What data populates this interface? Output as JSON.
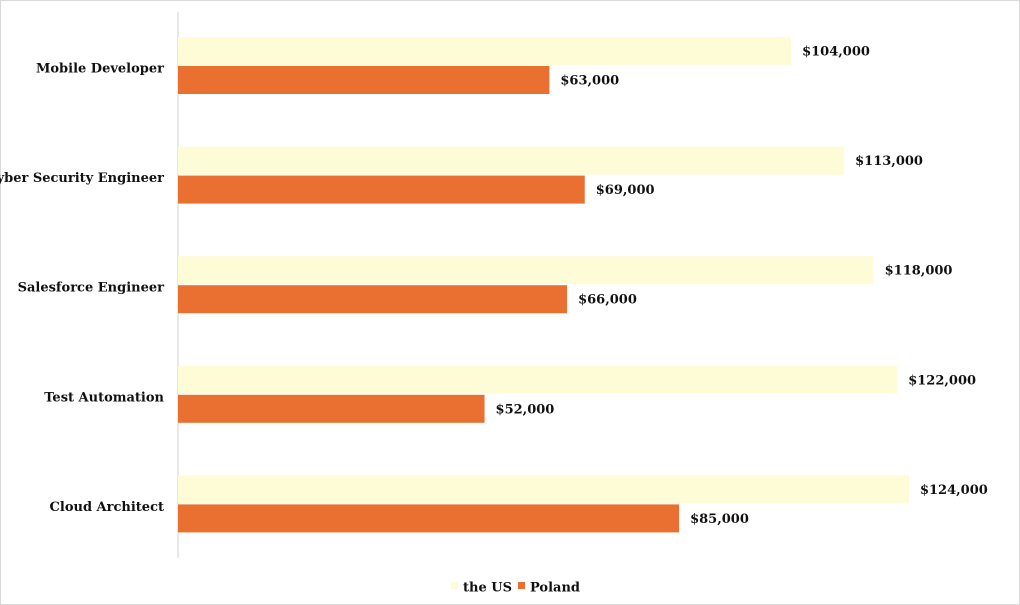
{
  "chart_data": {
    "type": "bar",
    "orientation": "horizontal",
    "categories": [
      "Mobile Developer",
      "Cyber Security Engineer",
      "Salesforce Engineer",
      "Test Automation",
      "Cloud Architect"
    ],
    "series": [
      {
        "name": "the US",
        "color": "#fefcd7",
        "values": [
          104000,
          113000,
          118000,
          122000,
          124000
        ],
        "labels": [
          "$104,000",
          "$113,000",
          "$118,000",
          "$122,000",
          "$124,000"
        ]
      },
      {
        "name": "Poland",
        "color": "#e97031",
        "values": [
          63000,
          69000,
          66000,
          52000,
          85000
        ],
        "labels": [
          "$63,000",
          "$69,000",
          "$66,000",
          "$52,000",
          "$85,000"
        ]
      }
    ],
    "xlim": [
      0,
      150000
    ],
    "grid": false,
    "legend": "bottom-center"
  }
}
